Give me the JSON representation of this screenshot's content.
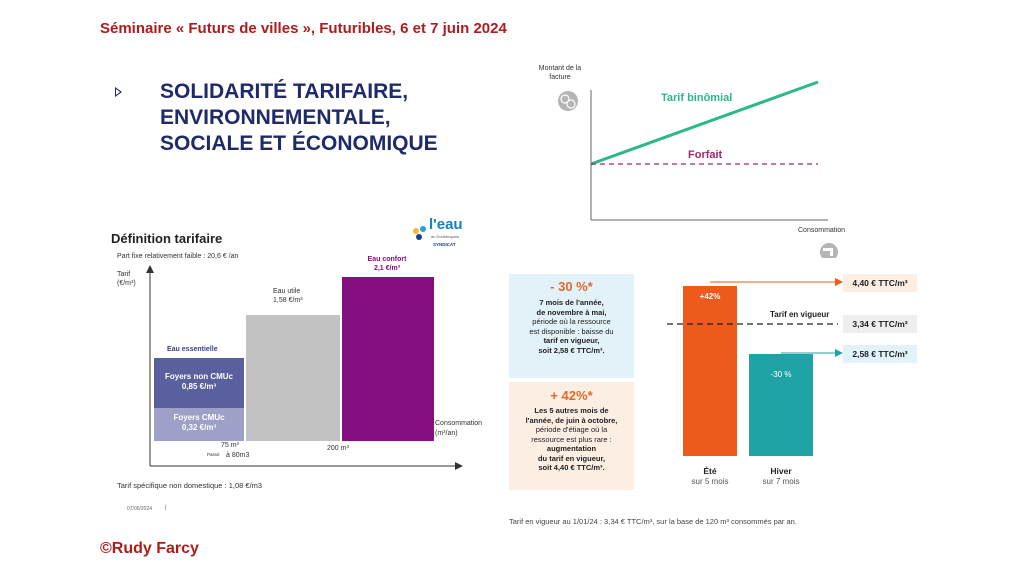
{
  "header": {
    "title": "Séminaire « Futurs de villes », Futuribles, 6 et 7 juin 2024"
  },
  "main_title": {
    "lines": [
      "SOLIDARITÉ TARIFAIRE,",
      "ENVIRONNEMENTALE,",
      "SOCIALE ET ÉCONOMIQUE"
    ]
  },
  "footer": {
    "credit": "©Rudy Farcy"
  },
  "top_chart": {
    "ylabel": "Montant de la facture",
    "xlabel": "Consommation",
    "lines": [
      {
        "name": "Tarif binômial",
        "color": "#2db987"
      },
      {
        "name": "Forfait",
        "color": "#9c2a6b"
      }
    ]
  },
  "definition": {
    "title": "Définition tarifaire",
    "logo_top": "l'eau",
    "logo_sub": "du Dunkerquois",
    "logo_syndicat": "SYNDICAT",
    "fixed_part": "Part fixe relativement faible : 20,6 € /an",
    "axis_y": "Tarif",
    "axis_y_unit": "(€/m³)",
    "axis_x": "Consommation",
    "axis_x_unit": "(m³/an)",
    "eau_essentielle": "Eau essentielle",
    "foyers_non_cmuc": "Foyers non CMUc",
    "foyers_non_cmuc_val": "0,85 €/m³",
    "foyers_cmuc": "Foyers CMUc",
    "foyers_cmuc_val": "0,32 €/m³",
    "eau_utile": "Eau utile",
    "eau_utile_val": "1,58 €/m³",
    "eau_confort": "Eau confort",
    "eau_confort_val": "2,1 €/m³",
    "tick_75": "75 m³",
    "tick_passe": "Passé",
    "tick_80": "à 80m3",
    "tick_200": "200 m³",
    "non_domestique": "Tarif spécifique non domestique : 1,08 €/m3",
    "date": "07/06/2024",
    "date_sep": "|",
    "colors": {
      "purple": "#830f80",
      "grey": "#c2c2c2",
      "blue_dark": "#5a5f9e",
      "blue_light": "#9ea0c8"
    }
  },
  "seasonal": {
    "card_summer_winter": {
      "pct": "- 30 %*",
      "text": [
        "7 mois de l'année,",
        "de novembre à mai,",
        "période où la ressource",
        "est disponible : baisse du",
        "tarif en vigueur,",
        "soit 2,58 € TTC/m³."
      ]
    },
    "card_summer": {
      "pct": "+ 42%*",
      "text": [
        "Les 5 autres mois de",
        "l'année, de juin à octobre,",
        "période d'étiage où la",
        "ressource est plus rare :",
        "augmentation",
        "du tarif en vigueur,",
        "soit 4,40 € TTC/m³."
      ]
    },
    "bar_ete_pct": "+42%",
    "bar_hiver_pct": "-30 %",
    "ete_label": "Été",
    "ete_sub": "sur 5 mois",
    "hiver_label": "Hiver",
    "hiver_sub": "sur 7 mois",
    "tarif_vigueur": "Tarif en vigueur",
    "price_high": "4,40 € TTC/m³",
    "price_mid": "3,34 € TTC/m³",
    "price_low": "2,58 € TTC/m³",
    "note": "Tarif en vigueur au 1/01/24 : 3,34 € TTC/m³, sur la base de 120 m³ consommés par an.",
    "colors": {
      "orange": "#ee5a1c",
      "teal": "#1fa3a6",
      "card_blue": "#e3f2f8",
      "card_orange": "#fdeee3"
    }
  }
}
